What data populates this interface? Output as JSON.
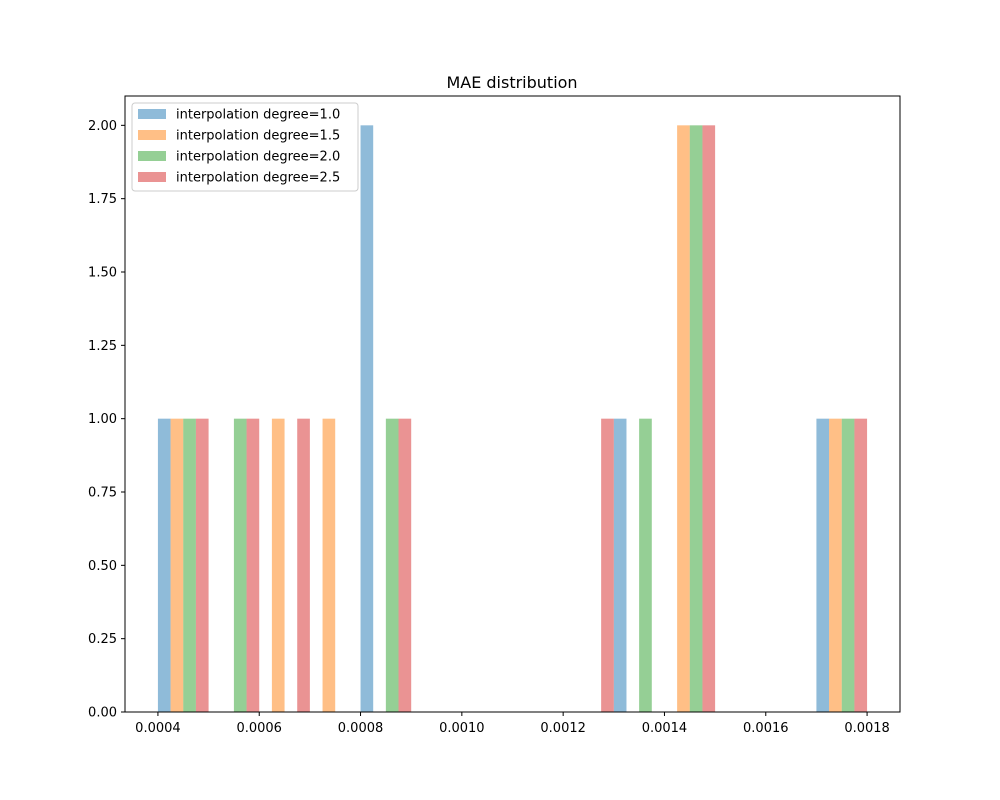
{
  "chart_data": {
    "type": "bar",
    "subtype": "overlapping-histogram",
    "title": "MAE distribution",
    "xlabel": "",
    "ylabel": "",
    "xlim": [
      0.000335,
      0.001865
    ],
    "ylim": [
      0,
      2.1
    ],
    "xticks": [
      "0.0004",
      "0.0006",
      "0.0008",
      "0.0010",
      "0.0012",
      "0.0014",
      "0.0016",
      "0.0018"
    ],
    "xtick_values": [
      0.0004,
      0.0006,
      0.0008,
      0.001,
      0.0012,
      0.0014,
      0.0016,
      0.0018
    ],
    "yticks": [
      "0.00",
      "0.25",
      "0.50",
      "0.75",
      "1.00",
      "1.25",
      "1.50",
      "1.75",
      "2.00"
    ],
    "ytick_values": [
      0,
      0.25,
      0.5,
      0.75,
      1.0,
      1.25,
      1.5,
      1.75,
      2.0
    ],
    "grid": false,
    "legend_position": "top-left",
    "bar_opacity": 0.5,
    "series": [
      {
        "name": "interpolation degree=1.0",
        "color": "#1f77b4",
        "bins": [
          {
            "x0": 0.0004,
            "x1": 0.0005,
            "count": 1
          },
          {
            "x0": 0.0008,
            "x1": 0.0009,
            "count": 2
          },
          {
            "x0": 0.0013,
            "x1": 0.0014,
            "count": 1
          },
          {
            "x0": 0.0017,
            "x1": 0.0018,
            "count": 1
          }
        ]
      },
      {
        "name": "interpolation degree=1.5",
        "color": "#ff7f0e",
        "bins": [
          {
            "x0": 0.0004,
            "x1": 0.0005,
            "count": 1
          },
          {
            "x0": 0.0006,
            "x1": 0.0007,
            "count": 1
          },
          {
            "x0": 0.0007,
            "x1": 0.0008,
            "count": 1
          },
          {
            "x0": 0.0014,
            "x1": 0.0015,
            "count": 2
          },
          {
            "x0": 0.0017,
            "x1": 0.0018,
            "count": 1
          }
        ]
      },
      {
        "name": "interpolation degree=2.0",
        "color": "#2ca02c",
        "bins": [
          {
            "x0": 0.0004,
            "x1": 0.0005,
            "count": 1
          },
          {
            "x0": 0.0005,
            "x1": 0.0006,
            "count": 1
          },
          {
            "x0": 0.0008,
            "x1": 0.0009,
            "count": 1
          },
          {
            "x0": 0.0013,
            "x1": 0.0014,
            "count": 1
          },
          {
            "x0": 0.0014,
            "x1": 0.0015,
            "count": 2
          },
          {
            "x0": 0.0017,
            "x1": 0.0018,
            "count": 1
          }
        ]
      },
      {
        "name": "interpolation degree=2.5",
        "color": "#d62728",
        "bins": [
          {
            "x0": 0.0004,
            "x1": 0.0005,
            "count": 1
          },
          {
            "x0": 0.0005,
            "x1": 0.0006,
            "count": 1
          },
          {
            "x0": 0.0006,
            "x1": 0.0007,
            "count": 1
          },
          {
            "x0": 0.0008,
            "x1": 0.0009,
            "count": 1
          },
          {
            "x0": 0.0012,
            "x1": 0.0013,
            "count": 1
          },
          {
            "x0": 0.0014,
            "x1": 0.0015,
            "count": 2
          },
          {
            "x0": 0.0017,
            "x1": 0.0018,
            "count": 1
          }
        ]
      }
    ]
  }
}
